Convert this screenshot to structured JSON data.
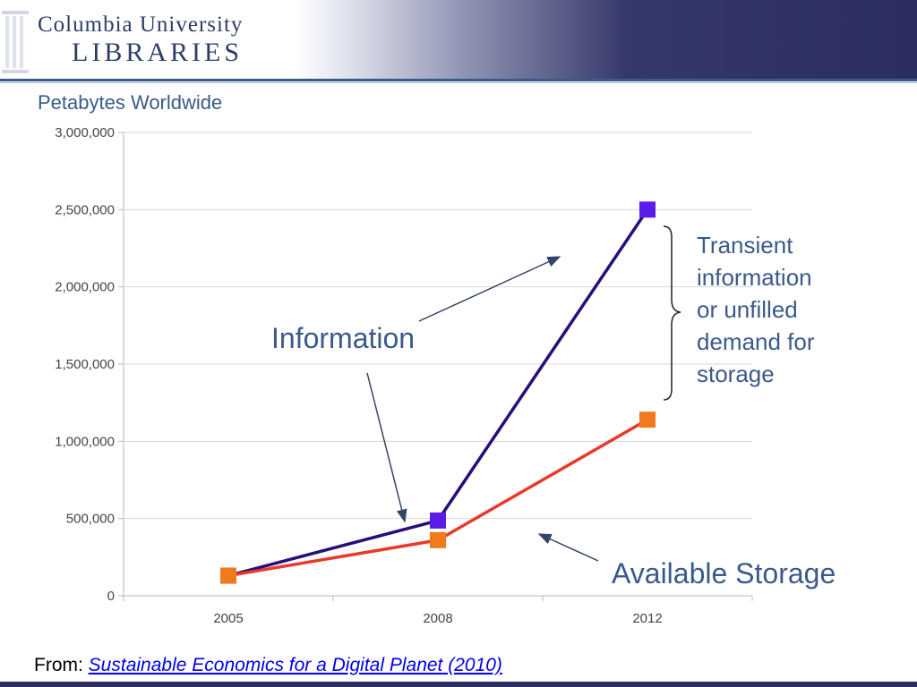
{
  "header": {
    "logo_line1": "Columbia University",
    "logo_line2": "LIBRARIES"
  },
  "source": {
    "prefix": "From:",
    "link_text": "Sustainable Economics for a Digital Planet (2010)"
  },
  "annotations": {
    "information": "Information",
    "available_storage": "Available Storage",
    "transient_lines": [
      "Transient",
      "information",
      "or unfilled",
      "demand for",
      "storage"
    ]
  },
  "chart_data": {
    "type": "line",
    "title": "Petabytes Worldwide",
    "xlabel": "",
    "ylabel": "",
    "categories": [
      "2005",
      "2008",
      "2012"
    ],
    "ylim": [
      0,
      3000000
    ],
    "yticks": [
      0,
      500000,
      1000000,
      1500000,
      2000000,
      2500000,
      3000000
    ],
    "ytick_labels": [
      "0",
      "500,000",
      "1,000,000",
      "1,500,000",
      "2,000,000",
      "2,500,000",
      "3,000,000"
    ],
    "grid": true,
    "series": [
      {
        "values": [
          130000,
          487000,
          2500000
        ],
        "color": "#2a0d7a",
        "marker_color": "#5a1de6"
      },
      {
        "values": [
          130000,
          360000,
          1140000
        ],
        "color": "#e8392b",
        "marker_color": "#f07a1c"
      }
    ]
  }
}
